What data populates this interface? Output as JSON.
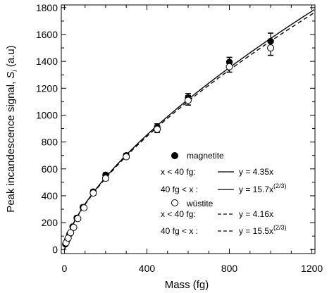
{
  "chart_data": {
    "type": "scatter",
    "xlabel": "Mass (fg)",
    "ylabel_main": "Peak incandescence signal, ",
    "ylabel_symbol": "S",
    "ylabel_sub": "i",
    "ylabel_unit": " (a.u)",
    "xlim": [
      -15,
      1215
    ],
    "ylim": [
      -30,
      1820
    ],
    "xticks": [
      0,
      400,
      800,
      1200
    ],
    "yticks": [
      0,
      200,
      400,
      600,
      800,
      1000,
      1200,
      1400,
      1600,
      1800
    ],
    "xticks_minor": [
      100,
      200,
      300,
      500,
      600,
      700,
      900,
      1000,
      1100
    ],
    "yticks_minor": [
      100,
      300,
      500,
      700,
      900,
      1100,
      1300,
      1500,
      1700
    ],
    "grid": false,
    "legend_position": "lower-right",
    "series": [
      {
        "name": "magnetite",
        "marker": "filled-circle",
        "points": [
          {
            "x": 5,
            "y": 40,
            "err": 0
          },
          {
            "x": 15,
            "y": 75,
            "err": 0
          },
          {
            "x": 25,
            "y": 115,
            "err": 0
          },
          {
            "x": 40,
            "y": 170,
            "err": 0
          },
          {
            "x": 60,
            "y": 235,
            "err": 12
          },
          {
            "x": 90,
            "y": 315,
            "err": 14
          },
          {
            "x": 140,
            "y": 430,
            "err": 15
          },
          {
            "x": 200,
            "y": 555,
            "err": 15
          },
          {
            "x": 300,
            "y": 700,
            "err": 15
          },
          {
            "x": 450,
            "y": 910,
            "err": 25
          },
          {
            "x": 600,
            "y": 1130,
            "err": 30
          },
          {
            "x": 800,
            "y": 1395,
            "err": 35
          },
          {
            "x": 1000,
            "y": 1550,
            "err": 60
          }
        ]
      },
      {
        "name": "wüstite",
        "marker": "open-circle",
        "points": [
          {
            "x": 8,
            "y": 50,
            "err": 0
          },
          {
            "x": 18,
            "y": 85,
            "err": 0
          },
          {
            "x": 30,
            "y": 125,
            "err": 0
          },
          {
            "x": 45,
            "y": 165,
            "err": 0
          },
          {
            "x": 65,
            "y": 230,
            "err": 10
          },
          {
            "x": 95,
            "y": 310,
            "err": 12
          },
          {
            "x": 140,
            "y": 420,
            "err": 15
          },
          {
            "x": 200,
            "y": 530,
            "err": 15
          },
          {
            "x": 300,
            "y": 690,
            "err": 15
          },
          {
            "x": 450,
            "y": 895,
            "err": 25
          },
          {
            "x": 600,
            "y": 1110,
            "err": 35
          },
          {
            "x": 800,
            "y": 1360,
            "err": 40
          },
          {
            "x": 1000,
            "y": 1500,
            "err": 55
          }
        ]
      }
    ],
    "fits": [
      {
        "style": "solid",
        "linear_coef": 4.35,
        "power_coef": 15.7,
        "exponent": 0.6667,
        "break": 40
      },
      {
        "style": "dashed",
        "linear_coef": 4.16,
        "power_coef": 15.5,
        "exponent": 0.6667,
        "break": 40
      }
    ],
    "legend": {
      "magnetite_label": "magnetite",
      "wustite_label": "wüstite",
      "rows": [
        {
          "cond": "x < 40 fg:",
          "eq": "y = 4.35x",
          "sup": "",
          "style": "solid"
        },
        {
          "cond": "40 fg < x :",
          "eq": "y = 15.7x",
          "sup": "(2/3)",
          "style": "solid"
        },
        {
          "cond": "x < 40 fg:",
          "eq": "y = 4.16x",
          "sup": "",
          "style": "dashed"
        },
        {
          "cond": "40 fg < x :",
          "eq": "y = 15.5x",
          "sup": "(2/3)",
          "style": "dashed"
        }
      ]
    }
  }
}
